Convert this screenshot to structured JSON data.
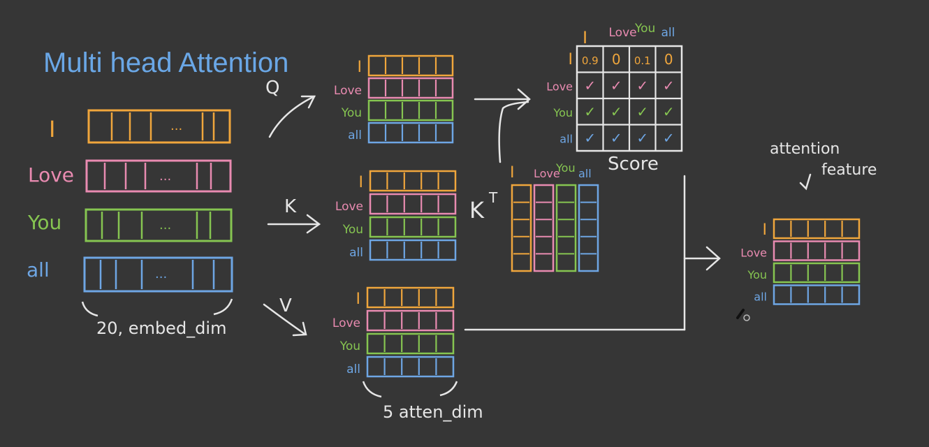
{
  "title": "Multi head Attention",
  "colors": {
    "background": "#363636",
    "chalk": "#e6e6e6",
    "title": "#6aa7e6",
    "I": "#f0a63c",
    "Love": "#e98bb1",
    "You": "#86c551",
    "all": "#6ea6e4"
  },
  "input": {
    "tokens": [
      "I",
      "Love",
      "You",
      "all"
    ],
    "dots": "...",
    "dim_label": "20, embed_dim"
  },
  "projections": {
    "q_label": "Q",
    "k_label": "K",
    "v_label": "V",
    "tokens": [
      "I",
      "Love",
      "You",
      "all"
    ],
    "dim_label": "5 atten_dim"
  },
  "key_transpose": {
    "label": "K",
    "superscript": "T",
    "headers": [
      "I",
      "Love",
      "You",
      "all"
    ]
  },
  "score": {
    "label": "Score",
    "col_headers": [
      "I",
      "Love",
      "You",
      "all"
    ],
    "row_headers": [
      "I",
      "Love",
      "You",
      "all"
    ],
    "first_row": [
      "0.9",
      "0",
      "0.1",
      "0"
    ],
    "check": "✓"
  },
  "output": {
    "caption_line1": "attention",
    "caption_line2": "feature",
    "tokens": [
      "I",
      "Love",
      "You",
      "all"
    ]
  },
  "cursor_icon": "brush-cursor-icon"
}
